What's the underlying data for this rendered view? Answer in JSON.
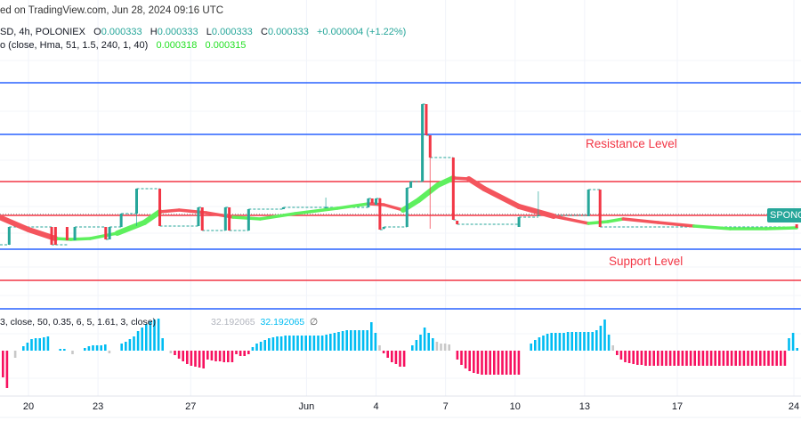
{
  "header": {
    "published": "ed on TradingView.com, Jun 28, 2024 09:16 UTC",
    "symbol": "SD, 4h, POLONIEX",
    "ohlc": {
      "o_label": "O",
      "o": "0.000333",
      "h_label": "H",
      "h": "0.000333",
      "l_label": "L",
      "l": "0.000333",
      "c_label": "C",
      "c": "0.000333",
      "change": "+0.000004 (+1.22%)"
    },
    "hma": {
      "label": "o (close, Hma, 51, 1.5, 240, 1, 40)",
      "value1": "0.000318",
      "value2": "0.000315"
    }
  },
  "oscillator": {
    "label": "3, close, 50, 0.35, 6, 5, 1.61, 3, close)",
    "value1": "32.192065",
    "value2": "32.192065",
    "symbol": "∅"
  },
  "price_tag": "SPONG",
  "annotations": {
    "resistance": "Resistance Level",
    "support": "Support Level"
  },
  "colors": {
    "up": "#26a69a",
    "down": "#f23645",
    "hma_up": "#5ef05e",
    "hma_down": "#f4555d",
    "level_blue": "#2962ff",
    "level_red": "#f23645",
    "osc_up": "#00bcf2",
    "osc_down": "#f7115f",
    "osc_neutral": "#c8c8c8"
  },
  "chart_data": {
    "type": "candlestick",
    "time_axis": {
      "ticks": [
        [
          "05-20",
          "20"
        ],
        [
          "05-23",
          "23"
        ],
        [
          "05-27",
          "27"
        ],
        [
          "06-01",
          "Jun"
        ],
        [
          "06-04",
          "4"
        ],
        [
          "06-07",
          "7"
        ],
        [
          "06-10",
          "10"
        ],
        [
          "06-13",
          "13"
        ],
        [
          "06-17",
          "17"
        ],
        [
          "06-24",
          "24"
        ]
      ]
    },
    "grid": true,
    "candles_columns": [
      "time",
      "open",
      "high",
      "low",
      "close"
    ],
    "candles": [
      [
        "05-19 04:00",
        0.0003,
        0.00032,
        0.0003,
        0.00032
      ],
      [
        "05-21 00:00",
        0.00032,
        0.00032,
        0.0003,
        0.0003
      ],
      [
        "05-21 04:00",
        0.00032,
        0.00032,
        0.0003,
        0.0003
      ],
      [
        "05-21 16:00",
        0.00032,
        0.00032,
        0.000305,
        0.000305
      ],
      [
        "05-22 00:00",
        0.000305,
        0.00032,
        0.000305,
        0.00032
      ],
      [
        "05-23 08:00",
        0.00032,
        0.00032,
        0.000306,
        0.000306
      ],
      [
        "05-23 12:00",
        0.000306,
        0.00032,
        0.000306,
        0.00032
      ],
      [
        "05-24 00:00",
        0.00032,
        0.000335,
        0.00032,
        0.000335
      ],
      [
        "05-24 16:00",
        0.000335,
        0.000363,
        0.000321,
        0.000363
      ],
      [
        "05-25 16:00",
        0.000363,
        0.000363,
        0.000321,
        0.000321
      ],
      [
        "05-27 08:00",
        0.000321,
        0.000342,
        0.000321,
        0.000342
      ],
      [
        "05-27 12:00",
        0.000342,
        0.000342,
        0.000316,
        0.000316
      ],
      [
        "05-28 12:00",
        0.000316,
        0.000342,
        0.000316,
        0.000342
      ],
      [
        "05-28 16:00",
        0.000342,
        0.000342,
        0.000316,
        0.000316
      ],
      [
        "05-29 12:00",
        0.000316,
        0.00034,
        0.000316,
        0.00034
      ],
      [
        "05-31 00:00",
        0.00034,
        0.000342,
        0.00034,
        0.000342
      ],
      [
        "06-01 20:00",
        0.000342,
        0.000353,
        0.000342,
        0.000342
      ],
      [
        "06-03 16:00",
        0.000342,
        0.000352,
        0.000342,
        0.000352
      ],
      [
        "06-03 20:00",
        0.000352,
        0.000352,
        0.000347,
        0.000347
      ],
      [
        "06-04 00:00",
        0.000345,
        0.000352,
        0.000345,
        0.000352
      ],
      [
        "06-04 04:00",
        0.000352,
        0.000353,
        0.000317,
        0.000317
      ],
      [
        "06-04 08:00",
        0.000318,
        0.00032,
        0.000317,
        0.00032
      ],
      [
        "06-05 08:00",
        0.00032,
        0.000364,
        0.00032,
        0.000364
      ],
      [
        "06-05 12:00",
        0.000364,
        0.000371,
        0.000364,
        0.000371
      ],
      [
        "06-06 00:00",
        0.000371,
        0.000458,
        0.000371,
        0.000458
      ],
      [
        "06-06 04:00",
        0.000458,
        0.000458,
        0.000423,
        0.000423
      ],
      [
        "06-06 08:00",
        0.000423,
        0.000423,
        0.000318,
        0.000398
      ],
      [
        "06-07 08:00",
        0.000398,
        0.000398,
        0.000328,
        0.000328
      ],
      [
        "06-07 12:00",
        0.000327,
        0.000327,
        0.000323,
        0.000323
      ],
      [
        "06-10 04:00",
        0.00032,
        0.000331,
        0.00032,
        0.000331
      ],
      [
        "06-11 00:00",
        0.000333,
        0.00036,
        0.000333,
        0.000333
      ],
      [
        "06-13 04:00",
        0.000332,
        0.000362,
        0.000332,
        0.000362
      ],
      [
        "06-13 16:00",
        0.000362,
        0.000362,
        0.00032,
        0.00032
      ],
      [
        "06-24 04:00",
        0.000323,
        0.000323,
        0.000319,
        0.000319
      ]
    ],
    "hma_columns": [
      "time",
      "value",
      "trend"
    ],
    "hma": [
      [
        "05-18 20:00",
        0.00033,
        "down"
      ],
      [
        "05-20 00:00",
        0.000317,
        "down"
      ],
      [
        "05-21 04:00",
        0.000307,
        "down"
      ],
      [
        "05-21 20:00",
        0.000306,
        "up"
      ],
      [
        "05-22 16:00",
        0.000307,
        "up"
      ],
      [
        "05-23 20:00",
        0.000313,
        "up"
      ],
      [
        "05-25 00:00",
        0.000325,
        "up"
      ],
      [
        "05-25 16:00",
        0.000337,
        "up"
      ],
      [
        "05-26 12:00",
        0.000339,
        "down"
      ],
      [
        "05-27 16:00",
        0.000336,
        "down"
      ],
      [
        "05-28 20:00",
        0.000331,
        "down"
      ],
      [
        "05-30 00:00",
        0.000329,
        "up"
      ],
      [
        "05-31 12:00",
        0.000335,
        "up"
      ],
      [
        "06-02 08:00",
        0.000341,
        "up"
      ],
      [
        "06-03 16:00",
        0.000346,
        "up"
      ],
      [
        "06-04 08:00",
        0.000345,
        "down"
      ],
      [
        "06-05 04:00",
        0.000339,
        "down"
      ],
      [
        "06-05 20:00",
        0.00035,
        "up"
      ],
      [
        "06-06 16:00",
        0.000367,
        "up"
      ],
      [
        "06-07 08:00",
        0.000375,
        "up"
      ],
      [
        "06-08 00:00",
        0.000374,
        "down"
      ],
      [
        "06-08 16:00",
        0.000363,
        "down"
      ],
      [
        "06-10 04:00",
        0.000343,
        "down"
      ],
      [
        "06-11 16:00",
        0.000332,
        "down"
      ],
      [
        "06-13 04:00",
        0.000324,
        "down"
      ],
      [
        "06-14 00:00",
        0.000326,
        "up"
      ],
      [
        "06-14 16:00",
        0.000329,
        "up"
      ],
      [
        "06-16 04:00",
        0.000325,
        "down"
      ],
      [
        "06-18 00:00",
        0.000321,
        "down"
      ],
      [
        "06-20 04:00",
        0.000318,
        "up"
      ],
      [
        "06-22 08:00",
        0.000318,
        "up"
      ],
      [
        "06-24 04:00",
        0.000319,
        "up"
      ]
    ],
    "levels": [
      {
        "price": 0.000482,
        "color": "blue"
      },
      {
        "price": 0.000424,
        "color": "blue"
      },
      {
        "price": 0.000371,
        "color": "red"
      },
      {
        "price": 0.000333,
        "color": "red",
        "dotted": true
      },
      {
        "price": 0.000295,
        "color": "blue"
      },
      {
        "price": 0.00026,
        "color": "red"
      },
      {
        "price": 0.000228,
        "color": "blue"
      }
    ],
    "oscillator_segments": [
      {
        "start": 0,
        "color": "down",
        "values": [
          -30,
          -42
        ]
      },
      {
        "start": 3,
        "color": "neutral",
        "values": [
          -8
        ]
      },
      {
        "start": 5,
        "color": "up",
        "values": [
          5,
          9,
          13,
          14,
          14,
          15,
          16
        ]
      },
      {
        "start": 14,
        "color": "up",
        "values": [
          2,
          2
        ]
      },
      {
        "start": 17,
        "color": "neutral",
        "values": [
          -4
        ]
      },
      {
        "start": 20,
        "color": "up",
        "values": [
          3,
          5,
          6,
          6,
          6,
          7
        ]
      },
      {
        "start": 26,
        "color": "neutral",
        "values": [
          -3
        ]
      },
      {
        "start": 29,
        "color": "up",
        "values": [
          8,
          10,
          13,
          16,
          22,
          26,
          30,
          33,
          35,
          36,
          14
        ]
      },
      {
        "start": 41,
        "color": "neutral",
        "values": [
          -3
        ]
      },
      {
        "start": 42,
        "color": "down",
        "values": [
          -5,
          -9,
          -12,
          -15,
          -17,
          -18,
          -19,
          -20,
          -10,
          -11,
          -12,
          -12,
          -13,
          -13,
          -13
        ]
      },
      {
        "start": 57,
        "color": "down",
        "values": [
          -4,
          -6,
          -6,
          -4
        ]
      },
      {
        "start": 61,
        "color": "up",
        "values": [
          4,
          8,
          10,
          12,
          14,
          15,
          16,
          16,
          17,
          17,
          17,
          17,
          17,
          17,
          17,
          17,
          17,
          17,
          18,
          19,
          20,
          21,
          22,
          23,
          23,
          23,
          23,
          23,
          23,
          32,
          20
        ]
      },
      {
        "start": 92,
        "color": "neutral",
        "values": [
          6
        ]
      },
      {
        "start": 93,
        "color": "down",
        "values": [
          -3,
          -8,
          -13,
          -15,
          -18,
          -18
        ]
      },
      {
        "start": 100,
        "color": "up",
        "values": [
          6,
          12,
          18,
          26,
          20,
          14
        ]
      },
      {
        "start": 106,
        "color": "neutral",
        "values": [
          10,
          8,
          8,
          7
        ]
      },
      {
        "start": 111,
        "color": "down",
        "values": [
          -10,
          -16,
          -20,
          -23,
          -25,
          -26,
          -27,
          -27,
          -27,
          -27,
          -27,
          -27,
          -27,
          -27,
          -27,
          -27
        ]
      },
      {
        "start": 129,
        "color": "up",
        "values": [
          8,
          12,
          15,
          17,
          19,
          20,
          20,
          20,
          20,
          21,
          21,
          21,
          21,
          21,
          21,
          21,
          23,
          28,
          35,
          18
        ]
      },
      {
        "start": 149,
        "color": "neutral",
        "values": [
          6
        ]
      },
      {
        "start": 150,
        "color": "down",
        "values": [
          -5,
          -10,
          -13,
          -14,
          -15,
          -16,
          -16,
          -17,
          -17,
          -17,
          -17,
          -17,
          -17,
          -17,
          -17,
          -17,
          -17,
          -17,
          -17,
          -17,
          -17,
          -17,
          -17,
          -17,
          -17,
          -17,
          -17,
          -17,
          -17,
          -17,
          -17,
          -17,
          -17,
          -17,
          -17,
          -17,
          -17,
          -17,
          -17,
          -17,
          -17,
          -17
        ]
      },
      {
        "start": 192,
        "color": "up",
        "values": [
          14,
          20,
          3
        ]
      }
    ]
  }
}
